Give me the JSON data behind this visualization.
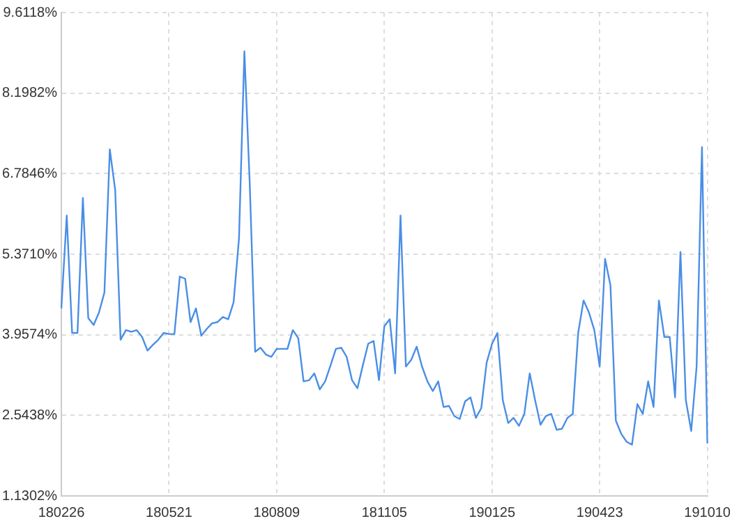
{
  "chart_data": {
    "type": "line",
    "grid": true,
    "legend": false,
    "marker": "none",
    "categories": [
      "180226",
      null,
      null,
      null,
      null,
      null,
      null,
      null,
      null,
      null,
      null,
      null,
      null,
      null,
      null,
      null,
      null,
      null,
      null,
      null,
      "180521",
      null,
      null,
      null,
      null,
      null,
      null,
      null,
      null,
      null,
      null,
      null,
      null,
      null,
      null,
      null,
      null,
      null,
      null,
      null,
      "180809",
      null,
      null,
      null,
      null,
      null,
      null,
      null,
      null,
      null,
      null,
      null,
      null,
      null,
      null,
      null,
      null,
      null,
      null,
      null,
      "181105",
      null,
      null,
      null,
      null,
      null,
      null,
      null,
      null,
      null,
      null,
      null,
      null,
      null,
      null,
      null,
      null,
      null,
      null,
      null,
      "190125",
      null,
      null,
      null,
      null,
      null,
      null,
      null,
      null,
      null,
      null,
      null,
      null,
      null,
      null,
      null,
      null,
      null,
      null,
      null,
      "190423",
      null,
      null,
      null,
      null,
      null,
      null,
      null,
      null,
      null,
      null,
      null,
      null,
      null,
      null,
      null,
      null,
      null,
      null,
      null,
      "191010"
    ],
    "series": [
      {
        "color": "#4a8ee6",
        "values": [
          4.42,
          6.05,
          3.99,
          3.99,
          6.36,
          4.25,
          4.13,
          4.35,
          4.7,
          7.21,
          6.5,
          3.87,
          4.04,
          4.01,
          4.04,
          3.92,
          3.68,
          3.78,
          3.87,
          3.99,
          3.97,
          3.97,
          4.98,
          4.94,
          4.18,
          4.42,
          3.94,
          4.06,
          4.16,
          4.18,
          4.27,
          4.23,
          4.53,
          5.65,
          8.93,
          6.59,
          3.66,
          3.73,
          3.61,
          3.57,
          3.71,
          3.71,
          3.71,
          4.04,
          3.9,
          3.14,
          3.16,
          3.28,
          3.0,
          3.14,
          3.42,
          3.71,
          3.73,
          3.57,
          3.16,
          3.02,
          3.42,
          3.8,
          3.85,
          3.16,
          4.11,
          4.23,
          3.28,
          6.05,
          3.4,
          3.52,
          3.75,
          3.4,
          3.14,
          2.97,
          3.14,
          2.69,
          2.71,
          2.53,
          2.48,
          2.79,
          2.86,
          2.5,
          2.67,
          3.47,
          3.8,
          3.99,
          2.81,
          2.41,
          2.5,
          2.36,
          2.57,
          3.28,
          2.81,
          2.38,
          2.53,
          2.57,
          2.29,
          2.31,
          2.5,
          2.57,
          3.99,
          4.56,
          4.35,
          4.04,
          3.4,
          5.29,
          4.82,
          2.45,
          2.22,
          2.08,
          2.03,
          2.74,
          2.57,
          3.14,
          2.69,
          4.56,
          3.92,
          3.92,
          2.86,
          5.41,
          2.81,
          2.27,
          3.4,
          7.25,
          2.05
        ]
      }
    ],
    "ylim": [
      1.1302,
      9.6118
    ],
    "yticks": [
      {
        "value": 1.1302,
        "label": "1.1302%"
      },
      {
        "value": 2.5438,
        "label": "2.5438%"
      },
      {
        "value": 3.9574,
        "label": "3.9574%"
      },
      {
        "value": 5.371,
        "label": "5.3710%"
      },
      {
        "value": 6.7846,
        "label": "6.7846%"
      },
      {
        "value": 8.1982,
        "label": "8.1982%"
      },
      {
        "value": 9.6118,
        "label": "9.6118%"
      }
    ]
  }
}
